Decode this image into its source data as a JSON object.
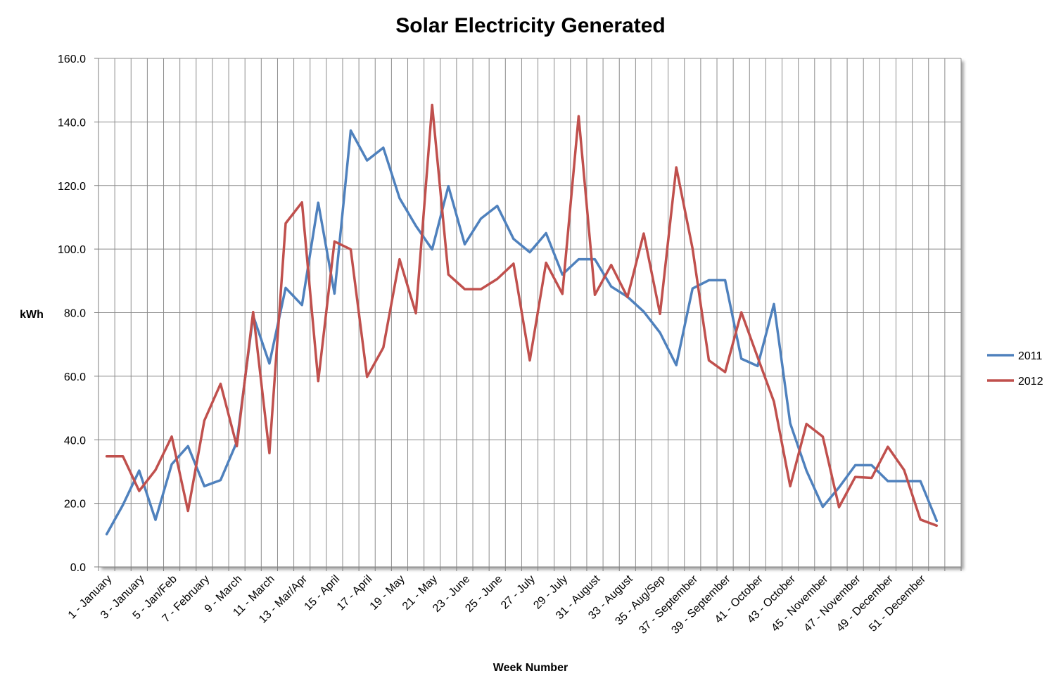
{
  "chart_data": {
    "type": "line",
    "title": "Solar Electricity Generated",
    "xlabel": "Week Number",
    "ylabel": "kWh",
    "ylim": [
      0,
      160
    ],
    "y_ticks": [
      "0.0",
      "20.0",
      "40.0",
      "60.0",
      "80.0",
      "100.0",
      "120.0",
      "140.0",
      "160.0"
    ],
    "grid": true,
    "legend_position": "right",
    "x_tick_labels": [
      "1 - January",
      "3 - January",
      "5 - Jan/Feb",
      "7 - February",
      "9 - March",
      "11 - March",
      "13 - Mar/Apr",
      "15 - April",
      "17 - April",
      "19 - May",
      "21 - May",
      "23 - June",
      "25 - June",
      "27 - July",
      "29 - July",
      "31 - August",
      "33 - August",
      "35 - Aug/Sep",
      "37 - September",
      "39 - September",
      "41 - October",
      "43 - October",
      "45 - November",
      "47 - November",
      "49 - December",
      "51 - December"
    ],
    "x": [
      1,
      2,
      3,
      4,
      5,
      6,
      7,
      8,
      9,
      10,
      11,
      12,
      13,
      14,
      15,
      16,
      17,
      18,
      19,
      20,
      21,
      22,
      23,
      24,
      25,
      26,
      27,
      28,
      29,
      30,
      31,
      32,
      33,
      34,
      35,
      36,
      37,
      38,
      39,
      40,
      41,
      42,
      43,
      44,
      45,
      46,
      47,
      48,
      49,
      50,
      51,
      52,
      53
    ],
    "series": [
      {
        "name": "2011",
        "color": "#4F81BD",
        "values": [
          10.3,
          19.5,
          30.3,
          14.8,
          32.3,
          38.0,
          25.4,
          27.3,
          39.3,
          79.0,
          64.0,
          87.8,
          82.4,
          114.6,
          86.0,
          137.3,
          127.9,
          131.9,
          116.0,
          107.3,
          99.9,
          119.8,
          101.5,
          109.6,
          113.6,
          103.2,
          99.0,
          105.0,
          92.0,
          96.8,
          96.8,
          88.2,
          85.0,
          80.3,
          73.7,
          63.5,
          87.6,
          90.2,
          90.2,
          65.5,
          63.2,
          82.7,
          45.2,
          30.3,
          18.9,
          25.0,
          32.0,
          32.0,
          27.0,
          27.0,
          27.0,
          14.5,
          null
        ]
      },
      {
        "name": "2012",
        "color": "#C0504D",
        "values": [
          34.8,
          34.8,
          23.9,
          30.5,
          41.0,
          17.6,
          46.0,
          57.6,
          38.0,
          80.2,
          35.8,
          108.1,
          114.7,
          58.5,
          102.4,
          99.9,
          59.8,
          69.0,
          96.8,
          79.8,
          145.3,
          92.0,
          87.4,
          87.4,
          90.6,
          95.4,
          65.0,
          95.7,
          85.9,
          141.8,
          85.6,
          95.0,
          84.9,
          104.9,
          79.6,
          125.7,
          100.2,
          65.0,
          61.3,
          80.1,
          66.0,
          52.0,
          25.4,
          45.0,
          41.0,
          18.8,
          28.3,
          28.0,
          37.8,
          30.5,
          14.9,
          13.0,
          null
        ]
      }
    ]
  }
}
